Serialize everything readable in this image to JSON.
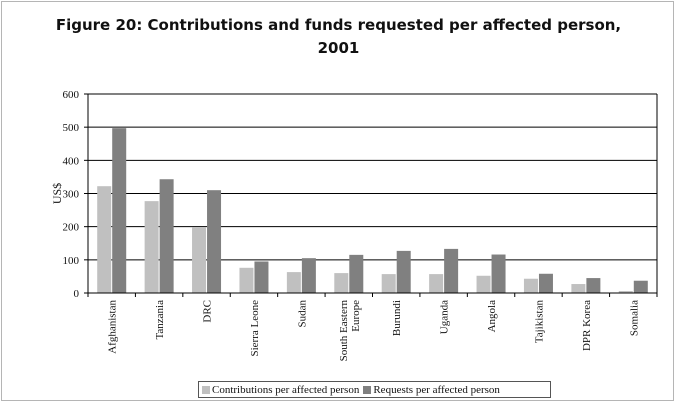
{
  "chart_data": {
    "type": "bar",
    "title": "Figure 20: Contributions and funds requested per affected person,\n2001",
    "ylabel": "US$",
    "xlabel": "",
    "ylim": [
      0,
      600
    ],
    "yticks": [
      0,
      100,
      200,
      300,
      400,
      500,
      600
    ],
    "grid": true,
    "legend_position": "bottom",
    "categories": [
      "Afghanistan",
      "Tanzania",
      "DRC",
      "Sierra Leone",
      "Sudan",
      "South Eastern Europe",
      "Burundi",
      "Uganda",
      "Angola",
      "Tajikistan",
      "DPR Korea",
      "Somalia"
    ],
    "category_labels": [
      [
        "Afghanistan"
      ],
      [
        "Tanzania"
      ],
      [
        "DRC"
      ],
      [
        "Sierra Leone"
      ],
      [
        "Sudan"
      ],
      [
        "South Eastern",
        "Europe"
      ],
      [
        "Burundi"
      ],
      [
        "Uganda"
      ],
      [
        "Angola"
      ],
      [
        "Tajikistan"
      ],
      [
        "DPR Korea"
      ],
      [
        "Somalia"
      ]
    ],
    "series": [
      {
        "name": "Contributions per affected person",
        "color": "#c0c0c0",
        "values": [
          322,
          277,
          198,
          76,
          63,
          60,
          57,
          57,
          52,
          43,
          27,
          6
        ]
      },
      {
        "name": "Requests per affected person",
        "color": "#808080",
        "values": [
          497,
          343,
          310,
          95,
          105,
          115,
          127,
          133,
          116,
          58,
          45,
          37
        ]
      }
    ]
  }
}
